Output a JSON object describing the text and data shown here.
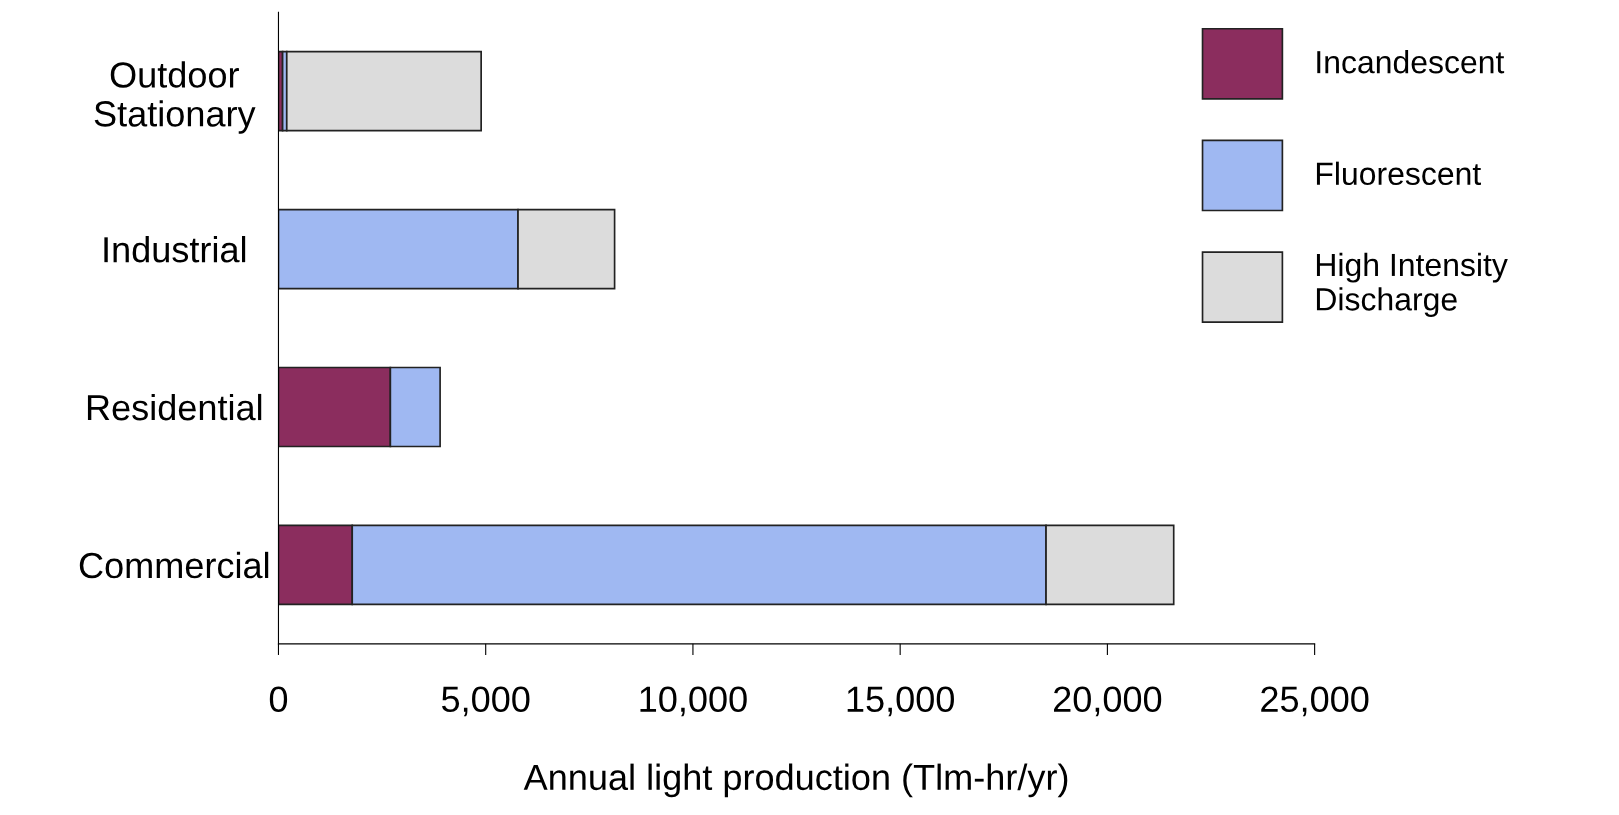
{
  "chart_data": {
    "type": "bar",
    "orientation": "horizontal",
    "stacked": true,
    "categories": [
      "Outdoor\nStationary",
      "Industrial",
      "Residential",
      "Commercial"
    ],
    "series": [
      {
        "name": "Incandescent",
        "color": "#8b2d5e",
        "values": [
          100,
          null,
          2700,
          1780
        ]
      },
      {
        "name": "Fluorescent",
        "color": "#9fb8f2",
        "values": [
          100,
          5780,
          1200,
          16740
        ]
      },
      {
        "name": "High Intensity\nDischarge",
        "color": "#dcdcdc",
        "values": [
          4690,
          2330,
          null,
          3080
        ]
      }
    ],
    "xlabel": "Annual light production (Tlm-hr/yr)",
    "xlim": [
      0,
      25000
    ],
    "xticks": [
      {
        "value": 0,
        "label": "0"
      },
      {
        "value": 5000,
        "label": "5,000"
      },
      {
        "value": 10000,
        "label": "10,000"
      },
      {
        "value": 15000,
        "label": "15,000"
      },
      {
        "value": 20000,
        "label": "20,000"
      },
      {
        "value": 25000,
        "label": "25,000"
      }
    ],
    "legend": "right",
    "grid": false
  }
}
